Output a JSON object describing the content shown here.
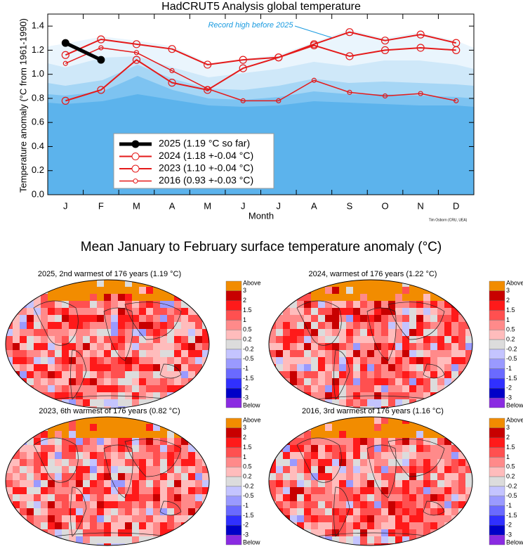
{
  "chart_data": {
    "type": "line",
    "title": "HadCRUT5 Analysis global temperature",
    "xlabel": "Month",
    "ylabel": "Temperature anomaly (°C from 1961-1990)",
    "annotation": "Record high before 2025",
    "credit": "Tim Osborn (CRU, UEA)",
    "categories": [
      "J",
      "F",
      "M",
      "A",
      "M",
      "J",
      "J",
      "A",
      "S",
      "O",
      "N",
      "D"
    ],
    "ylim": [
      0,
      1.5
    ],
    "yticks": [
      {
        "value": 0,
        "label": "0.0"
      },
      0.2,
      0.4,
      0.6,
      0.8,
      {
        "value": 1,
        "label": "1.0"
      },
      1.2,
      1.4
    ],
    "series": [
      {
        "name": "2025 (1.19 °C so far)",
        "color": "#000000",
        "linewidth": 5,
        "marker": "filled",
        "values": [
          1.26,
          1.12,
          null,
          null,
          null,
          null,
          null,
          null,
          null,
          null,
          null,
          null
        ]
      },
      {
        "name": "2024 (1.18 +-0.04 °C)",
        "color": "#e41a1a",
        "linewidth": 2,
        "marker": "open",
        "values": [
          1.16,
          1.29,
          1.25,
          1.21,
          1.08,
          1.12,
          1.14,
          1.24,
          1.15,
          1.2,
          1.22,
          1.2
        ]
      },
      {
        "name": "2023 (1.10 +-0.04 °C)",
        "color": "#e41a1a",
        "linewidth": 2,
        "marker": "open",
        "values": [
          0.78,
          0.87,
          1.12,
          0.93,
          0.87,
          1.05,
          1.14,
          1.25,
          1.35,
          1.28,
          1.33,
          1.26
        ]
      },
      {
        "name": "2016 (0.93 +-0.03 °C)",
        "color": "#e41a1a",
        "linewidth": 1.5,
        "marker": "small",
        "values": [
          1.09,
          1.22,
          1.18,
          1.03,
          0.88,
          0.78,
          0.78,
          0.95,
          0.85,
          0.82,
          0.84,
          0.78
        ]
      }
    ]
  },
  "maps": {
    "title": "Mean January to February surface temperature anomaly (°C)",
    "panels": [
      {
        "title": "2025, 2nd warmest of 176 years (1.19 °C)"
      },
      {
        "title": "2024, warmest of 176 years (1.22 °C)"
      },
      {
        "title": "2023, 6th warmest of 176 years (0.82 °C)"
      },
      {
        "title": "2016, 3rd warmest of 176 years (1.16 °C)"
      }
    ],
    "colorbar": {
      "labels": [
        "Above",
        3,
        2,
        1.5,
        1,
        0.5,
        0.2,
        -0.2,
        -0.5,
        -1,
        -1.5,
        -2,
        -3,
        "Below"
      ],
      "colors": [
        "#f28c00",
        "#c80000",
        "#ff1a1a",
        "#ff5050",
        "#ff8a8a",
        "#ffbcbc",
        "#dcdcdc",
        "#c4c4ff",
        "#9a9aff",
        "#6a6aff",
        "#3030ff",
        "#0000c8",
        "#8a2be2"
      ]
    }
  }
}
